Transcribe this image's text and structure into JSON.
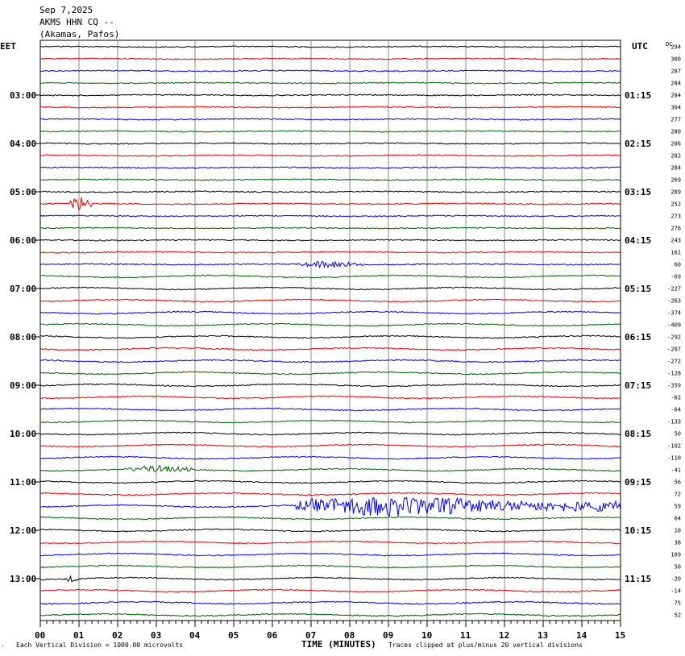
{
  "header": {
    "date": "Sep 7,2025",
    "station": "AKMS HHN CQ --",
    "location": "(Akamas, Pafos)"
  },
  "left_zone": "EET",
  "right_zone": "UTC",
  "dc_label": "DC",
  "footer": {
    "corner_mark": "·",
    "scale_note": "Each Vertical Division = 1000.00 microvolts",
    "clip_note": "Traces clipped at plus/minus 20 vertical divisions"
  },
  "chart_data": {
    "type": "line",
    "xlabel": "TIME (MINUTES)",
    "xlim": [
      0,
      15
    ],
    "x_ticks": [
      "00",
      "01",
      "02",
      "03",
      "04",
      "05",
      "06",
      "07",
      "08",
      "09",
      "10",
      "11",
      "12",
      "13",
      "14",
      "15"
    ],
    "trace_colors": [
      "#000000",
      "#e00000",
      "#0000e0",
      "#006000"
    ],
    "left_hour_labels": [
      "03:00",
      "04:00",
      "05:00",
      "06:00",
      "07:00",
      "08:00",
      "09:00",
      "10:00",
      "11:00",
      "12:00",
      "13:00"
    ],
    "right_hour_labels": [
      "01:15",
      "02:15",
      "03:15",
      "04:15",
      "05:15",
      "06:15",
      "07:15",
      "08:15",
      "09:15",
      "10:15",
      "11:15"
    ],
    "dc_offsets": [
      "294",
      "300",
      "287",
      "284",
      "284",
      "304",
      "277",
      "280",
      "286",
      "282",
      "284",
      "269",
      "289",
      "252",
      "273",
      "276",
      "243",
      "161",
      "60",
      "-69",
      "-227",
      "-263",
      "-374",
      "-409",
      "-292",
      "-287",
      "-272",
      "-128",
      "-359",
      "-62",
      "-64",
      "-133",
      "50",
      "-102",
      "-110",
      "-41",
      "56",
      "72",
      "59",
      "64",
      "10",
      "38",
      "109",
      "50",
      "-20",
      "-14",
      "75",
      "52"
    ],
    "events": [
      {
        "trace": 13,
        "start_min": 0.7,
        "end_min": 1.6,
        "amplitude": "moderate"
      },
      {
        "trace": 18,
        "start_min": 6.5,
        "end_min": 9.0,
        "amplitude": "small"
      },
      {
        "trace": 35,
        "start_min": 2.0,
        "end_min": 4.8,
        "amplitude": "small"
      },
      {
        "trace": 38,
        "start_min": 6.6,
        "end_min": 15.0,
        "amplitude": "large"
      },
      {
        "trace": 44,
        "start_min": 0.6,
        "end_min": 1.2,
        "amplitude": "small"
      }
    ]
  }
}
